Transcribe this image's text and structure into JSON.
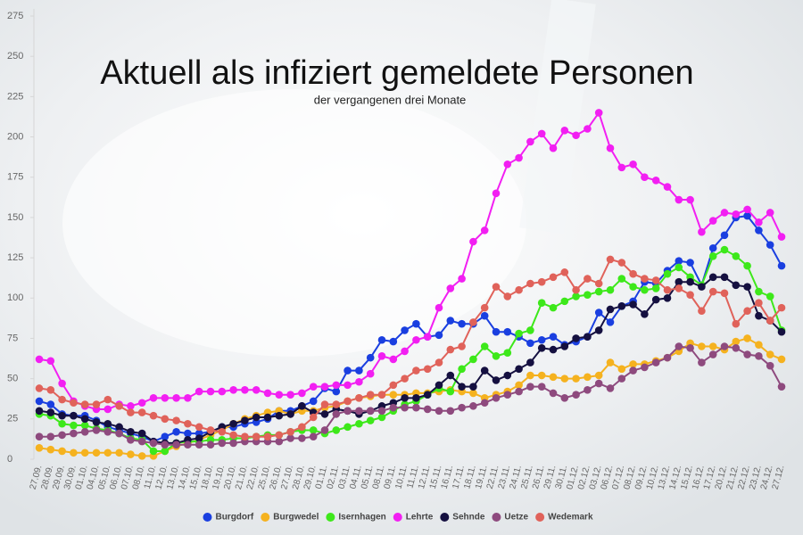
{
  "chart_data": {
    "type": "line",
    "title": "Aktuell als infiziert gemeldete Personen",
    "subtitle": "der vergangenen drei Monate",
    "categories": [
      "27.09.",
      "28.09.",
      "29.09.",
      "30.09.",
      "01.10.",
      "04.10.",
      "05.10.",
      "06.10.",
      "07.10.",
      "08.10.",
      "11.10.",
      "12.10.",
      "13.10.",
      "14.10.",
      "15.10.",
      "18.10.",
      "19.10.",
      "20.10.",
      "21.10.",
      "22.10.",
      "25.10.",
      "26.10.",
      "27.10.",
      "28.10.",
      "29.10.",
      "01.11.",
      "02.11.",
      "03.11.",
      "04.11.",
      "05.11.",
      "08.11.",
      "09.11.",
      "10.11.",
      "11.11.",
      "12.11.",
      "15.11.",
      "16.11.",
      "17.11.",
      "18.11.",
      "19.11.",
      "22.11.",
      "23.11.",
      "24.11.",
      "25.11.",
      "26.11.",
      "29.11.",
      "30.11.",
      "01.12.",
      "02.12.",
      "03.12.",
      "06.12.",
      "07.12.",
      "08.12.",
      "09.12.",
      "10.12.",
      "13.12.",
      "14.12.",
      "15.12.",
      "16.12.",
      "17.12.",
      "20.12.",
      "21.12.",
      "22.12.",
      "23.12.",
      "24.12.",
      "27.12."
    ],
    "ylim": [
      0,
      275
    ],
    "yticks": [
      0,
      25,
      50,
      75,
      100,
      125,
      150,
      175,
      200,
      225,
      250,
      275
    ],
    "series": [
      {
        "name": "Burgdorf",
        "color": "#1a3fe0",
        "values": [
          36,
          34,
          28,
          27,
          27,
          24,
          20,
          18,
          16,
          14,
          11,
          14,
          17,
          16,
          16,
          17,
          20,
          20,
          22,
          23,
          25,
          30,
          30,
          33,
          36,
          44,
          42,
          55,
          55,
          63,
          74,
          73,
          80,
          84,
          76,
          77,
          86,
          84,
          84,
          89,
          79,
          79,
          76,
          72,
          74,
          76,
          71,
          73,
          76,
          91,
          85,
          95,
          98,
          110,
          109,
          117,
          123,
          122,
          108,
          131,
          139,
          150,
          151,
          142,
          133,
          120
        ]
      },
      {
        "name": "Burgwedel",
        "color": "#f5b21f",
        "values": [
          7,
          6,
          5,
          4,
          4,
          4,
          4,
          4,
          3,
          2,
          2,
          5,
          8,
          10,
          12,
          15,
          18,
          22,
          25,
          27,
          29,
          30,
          28,
          30,
          30,
          32,
          33,
          36,
          38,
          39,
          40,
          40,
          40,
          41,
          41,
          42,
          43,
          42,
          41,
          38,
          40,
          42,
          46,
          52,
          52,
          51,
          50,
          50,
          51,
          52,
          60,
          56,
          59,
          59,
          61,
          63,
          67,
          72,
          70,
          70,
          68,
          73,
          75,
          71,
          65,
          62
        ]
      },
      {
        "name": "Isernhagen",
        "color": "#3de81a",
        "values": [
          28,
          27,
          22,
          21,
          21,
          19,
          18,
          16,
          13,
          12,
          5,
          5,
          10,
          11,
          11,
          12,
          12,
          13,
          13,
          14,
          15,
          15,
          17,
          18,
          18,
          16,
          18,
          20,
          22,
          24,
          26,
          30,
          34,
          36,
          40,
          44,
          42,
          56,
          62,
          70,
          64,
          66,
          78,
          80,
          97,
          94,
          98,
          101,
          102,
          104,
          105,
          112,
          107,
          105,
          106,
          115,
          119,
          113,
          108,
          126,
          130,
          126,
          120,
          104,
          101,
          80
        ]
      },
      {
        "name": "Lehrte",
        "color": "#f21ff2",
        "values": [
          62,
          61,
          47,
          36,
          33,
          31,
          31,
          34,
          33,
          35,
          38,
          38,
          38,
          38,
          42,
          42,
          42,
          43,
          43,
          43,
          41,
          40,
          40,
          41,
          45,
          45,
          46,
          46,
          48,
          53,
          64,
          62,
          67,
          74,
          76,
          94,
          106,
          112,
          135,
          142,
          165,
          183,
          187,
          197,
          202,
          193,
          204,
          201,
          205,
          215,
          193,
          181,
          183,
          175,
          173,
          169,
          161,
          161,
          141,
          148,
          153,
          152,
          155,
          147,
          153,
          138
        ]
      },
      {
        "name": "Sehnde",
        "color": "#151040",
        "values": [
          30,
          29,
          27,
          27,
          25,
          23,
          22,
          20,
          17,
          16,
          11,
          10,
          10,
          12,
          13,
          17,
          20,
          22,
          24,
          26,
          26,
          27,
          28,
          33,
          29,
          28,
          31,
          30,
          28,
          30,
          33,
          35,
          38,
          38,
          40,
          46,
          52,
          45,
          45,
          55,
          49,
          52,
          56,
          60,
          69,
          68,
          70,
          75,
          76,
          80,
          93,
          95,
          96,
          90,
          99,
          100,
          110,
          110,
          107,
          113,
          113,
          108,
          107,
          89,
          86,
          79
        ]
      },
      {
        "name": "Uetze",
        "color": "#8e4a7e",
        "values": [
          14,
          14,
          15,
          16,
          17,
          18,
          17,
          16,
          12,
          11,
          10,
          9,
          9,
          9,
          9,
          9,
          10,
          10,
          11,
          11,
          11,
          11,
          13,
          13,
          14,
          18,
          28,
          30,
          30,
          30,
          30,
          32,
          32,
          32,
          31,
          30,
          30,
          32,
          33,
          35,
          38,
          40,
          42,
          45,
          45,
          41,
          38,
          40,
          43,
          47,
          44,
          50,
          55,
          57,
          60,
          63,
          70,
          69,
          60,
          65,
          70,
          69,
          65,
          64,
          58,
          45
        ]
      },
      {
        "name": "Wedemark",
        "color": "#e0625a",
        "values": [
          44,
          43,
          37,
          35,
          34,
          34,
          37,
          33,
          29,
          29,
          27,
          25,
          24,
          22,
          20,
          18,
          17,
          15,
          14,
          14,
          14,
          15,
          17,
          20,
          26,
          34,
          34,
          36,
          38,
          40,
          40,
          46,
          50,
          55,
          56,
          60,
          68,
          70,
          85,
          94,
          107,
          101,
          105,
          109,
          110,
          113,
          116,
          105,
          112,
          109,
          124,
          122,
          115,
          112,
          111,
          105,
          106,
          102,
          92,
          104,
          103,
          84,
          92,
          97,
          86,
          94
        ]
      }
    ]
  }
}
